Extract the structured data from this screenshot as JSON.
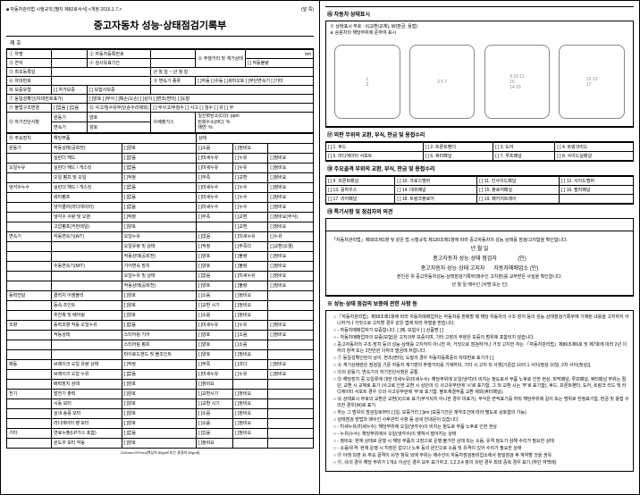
{
  "header": {
    "law_ref": "■ 자동차관리법 시행규칙 [별지 제82호서식] <개정 2016.1.7.>",
    "page_mark": "(앞 쪽)",
    "title": "중고자동차 성능·상태점검기록부",
    "issue_no": "제        호"
  },
  "top_rows": {
    "r1": "① 차명",
    "r1b": "② 자동차등록번호",
    "r1c": "⑧ 주행거리 및 계기상태",
    "km": "km",
    "r1d": "[ ] 작동불량",
    "r2": "③ 연식",
    "r2b": "④ 검사유효기간",
    "r2c": "년    월    일    ~    년    월    일",
    "r3": "⑤ 최초등록일",
    "r4": "⑩ 보증유형",
    "r4a": "[ ] 자가보증",
    "r4b": "[ ] 보험사보증",
    "r5": "⑥ 차대번호",
    "r5b": "⑨ 변속기 종류",
    "r5c": "[ ]자동 [ ]수동 [ ]세미오토 [ ]무단변속기 [ ]기타",
    "r6": "⑦ 동일성확인(차대번호표기)",
    "r6b": "[ ]양호 [ ]부식 [ ]훼손(오손) [ ]상이 [ ]변조(변타) [ ]도말",
    "r7": "⑪ 불법구조변경",
    "r7b": "[ ]없음 [ ]있음",
    "r7c": "⑫ 사고/침수유무(단순수리제외)",
    "r7d": "[ ] 무사고/무침수   [ ] 사고    [ ] 침수   [ ] 유     [ ] 무"
  },
  "eval": {
    "label": "⑬ 자기진단사항",
    "row1a": "원동기",
    "row1b": "양호",
    "row2a": "변속기",
    "row2b": "양호",
    "col_mid": "⑭배출가스",
    "co": "일산화탄소(CO):        ppm",
    "hc": "탄화수소(HC):        %",
    "smoke": "매연:        %"
  },
  "section15": "⑮ 주요장치",
  "cols": {
    "c1": "해당부품",
    "c2": "상태"
  },
  "items": [
    {
      "g": "원동기",
      "sub": "작동상태(공회전)",
      "a": "[ ]양호",
      "b": "[ ]소음",
      "c": "[ ]정비요"
    },
    {
      "g": "",
      "sub": "실린더 헤드",
      "a": "[ ]없음",
      "b": "[ ]미세누유",
      "c": "[ ]누유",
      "d": "[ ]정비요"
    },
    {
      "g": "오일누유",
      "sub": "실린더 헤드 / 개스킷",
      "a": "[ ]없음",
      "b": "[ ]미세누유",
      "c": "[ ]누유",
      "d": "[ ]정비요"
    },
    {
      "g": "",
      "sub": "오일 펌프 및 오일",
      "a": "[ ]적정",
      "b": "[ ]부족",
      "c": "[ ]교환",
      "d": "[ ]정비요"
    },
    {
      "g": "냉각수누수",
      "sub": "실린더 헤드 / 개스킷",
      "a": "[ ]없음",
      "b": "[ ]미세누수",
      "c": "[ ]누수",
      "d": "[ ]정비요"
    },
    {
      "g": "",
      "sub": "워터펌프",
      "a": "[ ]없음",
      "b": "[ ]미세누수",
      "c": "[ ]누수",
      "d": "[ ]정비요"
    },
    {
      "g": "",
      "sub": "냉각쿨러(라디에이터)",
      "a": "[ ]없음",
      "b": "[ ]미세누수",
      "c": "[ ]누수",
      "d": "[ ]정비요"
    },
    {
      "g": "",
      "sub": "냉각수 수량 및 오염",
      "a": "[ ]적정",
      "b": "[ ]부족",
      "c": "[ ]교환",
      "d": "[ ]정비요(부식)"
    },
    {
      "g": "",
      "sub": "고압펌프(커먼레일)",
      "a": "[ ]양호",
      "b": "",
      "c": "[ ]교환",
      "d": "[ ]정비요"
    },
    {
      "g": "변속기",
      "sub": "자동변속기(A/T)",
      "a": "오일누유",
      "b": "[ ]없음",
      "c": "[ ]미세누유",
      "d": "[ ]누유"
    },
    {
      "g": "",
      "sub": "",
      "a": "오일유량 및 상태",
      "b": "[ ]적정",
      "c": "[ ]부족다",
      "d": "[ ]교환(오염)"
    },
    {
      "g": "",
      "sub": "",
      "a": "작동상태(공회전)",
      "b": "[ ]양호",
      "c": "[ ]불량",
      "d": "[ ]정비요"
    },
    {
      "g": "",
      "sub": "수동변속기(M/T)",
      "a": "기어변속 장치",
      "b": "[ ]양호",
      "c": "[ ]불량",
      "d": "[ ]정비요"
    },
    {
      "g": "",
      "sub": "",
      "a": "오일누유 및 상태",
      "b": "[ ]없음",
      "c": "[ ]미세누유",
      "d": "[ ]정비요"
    },
    {
      "g": "",
      "sub": "",
      "a": "작동상태(공회전)",
      "b": "[ ]양호",
      "c": "[ ]불량",
      "d": "[ ]정비요"
    },
    {
      "g": "동력전달",
      "sub": "클러치 어셈블리",
      "a": "[ ]양호",
      "b": "[ ]소음",
      "c": "[ ]정비요"
    },
    {
      "g": "",
      "sub": "등속 조인트",
      "a": "[ ]양호",
      "b": "[ ]교환 시기",
      "c": "[ ]정비요"
    },
    {
      "g": "",
      "sub": "추진축 및 베어링",
      "a": "[ ]양호",
      "b": "[ ]소음",
      "c": "[ ]정비요"
    },
    {
      "g": "조향",
      "sub": "동력조향 작동 오일누유",
      "a": "[ ]없음",
      "b": "[ ]미세누유",
      "c": "[ ]누유",
      "d": "[ ]정비요"
    },
    {
      "g": "",
      "sub": "작동상태",
      "a": "스티어링 기어",
      "b": "[ ]양호",
      "c": "[ ]소음",
      "d": "[ ]정비요"
    },
    {
      "g": "",
      "sub": "",
      "a": "스티어링 펌프",
      "b": "[ ]양호",
      "c": "[ ]소음"
    },
    {
      "g": "",
      "sub": "",
      "a": "타이로드엔드 및 볼조인트",
      "b": "[ ]양호",
      "c": "[ ]정비요"
    },
    {
      "g": "제동",
      "sub": "브레이크 오일 유량  상태",
      "a": "[ ]적정",
      "b": "[ ]부족",
      "c": "[ ]과다",
      "d": "[ ]정비요"
    },
    {
      "g": "",
      "sub": "브레이크 오일 누유",
      "a": "[ ]없음",
      "b": "[ ]미세누유",
      "c": "[ ]누유",
      "d": "[ ]정비요"
    },
    {
      "g": "",
      "sub": "배력장치 상태",
      "a": "[ ]양호",
      "b": "[ ]정비요"
    },
    {
      "g": "전기",
      "sub": "발전기 출력",
      "a": "[ ]양호",
      "b": "[ ]교환시기",
      "c": "[ ]정비요"
    },
    {
      "g": "",
      "sub": "시동 모터",
      "a": "[ ]양호",
      "b": "[ ]교환 시기",
      "c": "[ ]정비요"
    },
    {
      "g": "",
      "sub": "실내 송풍 모터",
      "a": "[ ]양호",
      "b": "[ ]소음",
      "c": "[ ]정비요"
    },
    {
      "g": "",
      "sub": "라디에이터 팬 모터",
      "a": "[ ]양호",
      "b": "[ ]소음",
      "c": "[ ]정비요"
    },
    {
      "g": "기타",
      "sub": "연료누출(LP가스 포함)",
      "a": "[ ]없음",
      "b": "[ ]있음",
      "c": "[ ]정비요"
    },
    {
      "g": "",
      "sub": "윈도우 모터 작동",
      "a": "[ ]양호",
      "b": "[ ]정비요"
    }
  ],
  "footer_left": "210mm×297mm[백상지 80g/㎡ 또는 중질지 80g/㎡]",
  "right_head": "⑯ 자동차 상태표시",
  "right_head2": "※ 상태표시 부호 : X(교환/교체), W(판금, 용접)\n※ 승용차의 해당부위에 준하여 표시",
  "panel_section": "⑰ 외판 무위의 교환, 부식, 판금 및 용접수리",
  "panels": [
    "[ ] 1. 후드",
    "[ ] 2. 프론트펜더",
    "[ ] 3. 도어",
    "[ ] 4. 트렁크리드",
    "[ ] 5. 라디에이터 서포트",
    "[ ] 6. 쿼터패널",
    "[ ] 7. 루프패널",
    "[ ] 8. 사이드실패널"
  ],
  "frame_section": "⑱ 주요골격 부위의 교환, 부식, 판금 및 용접수리",
  "frames": [
    "[ ] 9. 프론트패널",
    "[ ] 10. 크로스멤버",
    "[ ] 11. 인사이드패널",
    "[ ] 12. 사이드멤버",
    "[ ] 13. 휠하우스",
    "[ ] 14. 대쉬패널",
    "[ ] 15. 플로어패널",
    "[ ] 16. 필러패널",
    "[ ] 17. 리어패널",
    "[ ] 18. 트렁크플로어",
    "[ ] 19. 패키지트레이",
    ""
  ],
  "spec_section": "⑲ 특기사항 및 점검자의 의견",
  "sig": {
    "law": "「자동차관리법」제58조제1항 및 같은 법 시행규칙 제120조제1항에 따라 중고자동차의 성능·상태를 점검/고지함을 확인합니다.",
    "date": "년        월        일",
    "line1": "중고자동차 성능·상태 점검자",
    "line1e": "(인)",
    "line2": "중고자동차 성능·상태 고지자",
    "line2e": "자동차매매업소  (인)",
    "confirm": "본인은 위 중고자동차성능·상태점검기록부(매수인 고지본)를 교부받은 사실을 확인합니다.",
    "buyer": "년    월    일    매수인                (서명 또는 인)"
  },
  "notes_title": "※ 성능·상태 점검의 보증에 관한 사항 등",
  "notes": [
    "「자동차관리법」제58조제1항에 따라 자동차매매업자는 자동차를 판매할 때 해당 자동차의 구조·장치 등의 성능·상태점검기록부에 기재된 내용을 고지하지 아니하거나 거짓으로 고지할 경우 같은 법에 따라 처벌을 받습니다.",
    "- 자동차매매업자가 보증합니다.  [ ]예,  보험사  [          ]  상품명  [          ]",
    "- 자동차매매업자의 보증(보험)은 고지의무 보증이며, 기타 고장의 부분은 보증의 범위에 포함되지 않습니다.",
    "중고자동차의 구조·장치 등의 성능·상태를 고지하지 아니한 자, 거짓으로 점검하거나 거짓 고지한 자는 「자동차관리법」제80조제6호 및 제7호에 따라 2년 이하의 징역 또는 2천만원 이하의 벌금에 처합니다.",
    "⑦ 동일성확인란의 상이, 변조(변타), 도말의 경우 자동차등록증의 차대번호 표기가 [           ]",
    "⑧ 계기상태란은 점검일 기준 자동차 계기판의 주행거리를 기재하되, 기타 시 고지 외 사항[기준값 10의 1 사이(정상 10일, 2차 사이(정상)].",
    "⑬의 원동기, 변속기의 자기진단사항은 공통.",
    "⑮ 해당장치 중 오일류에 대한 미세누유(미세누수): 해당부위에 오일(냉각)이 비치는 정도로서 부품 노후로 인한 현상, 피막패널, 루프패널, 쿼터패널 부위는 절단, 교환 시 교체로 표기 (사고로 인한 교환 시 상단의 ⑫ 사고유무란에 '시'로 표기함, 그 외 교환 시는 '무'로 표기함), 후드, 프론트펜더, 도어, 트렁크 리드 및 라디에이터 서포트 경우 ⑫의 사고유무란에 '무'로 표기함. 볼트체결부품 교환 제외(쿼터패널).",
    "⑯ 상태표시 부호의 교환은 교환(X)으로 표기(부식되지 아니한 경우 미표기), 부식은 면적표기를 하되 해당부위에 길이 또는 범위로 한정표기함, 판금 및 용접 수리한 경우(W)로 표기.",
    "하는 그 범위의 점검일로부터 [    ]일, 보증거리 [    ]km (보증기간은 계약조건에 따라 별도로 상호협의 가능).",
    "상태점검 방법과 매수인 사후관리 사항 등 상세 안내문이 있습니다.",
    "- 미세누유(미세누수): 해당부위에 오일(냉각수)이 비치는 정도로 부품 노후로 인한 현상",
    "- 누유(누수): 해당부위에서 오일(냉각수)이 맺혀서 떨어지는 상태",
    "- 정비요: 현재 상태로 운행 시 해당 부품의 고장으로 운행 불가한 상태 또는 소음. 유격 정도가 심해 수리가 필요한 상태",
    "- 소음/유격: 현재 운행 시 지장은 없으나 노후 등의 원인으로 소음 및 유격이 있어 수리가 필요한 상태",
    "⑰ 아래 외판 ⑱ 주요 골격이 ⑯번 항목 외에 부위는 매수인이 자동차점검정비업소에서 정밀점검 후 계약할 것을 권유.",
    "⑰, ⑱의 경우 해당 부위가 1개소 이상인 경우 모두 표기하고, 1,2,3,4 항의 ⑱번 경우 최대 중복 경우 표기.(하단 여백에)"
  ]
}
